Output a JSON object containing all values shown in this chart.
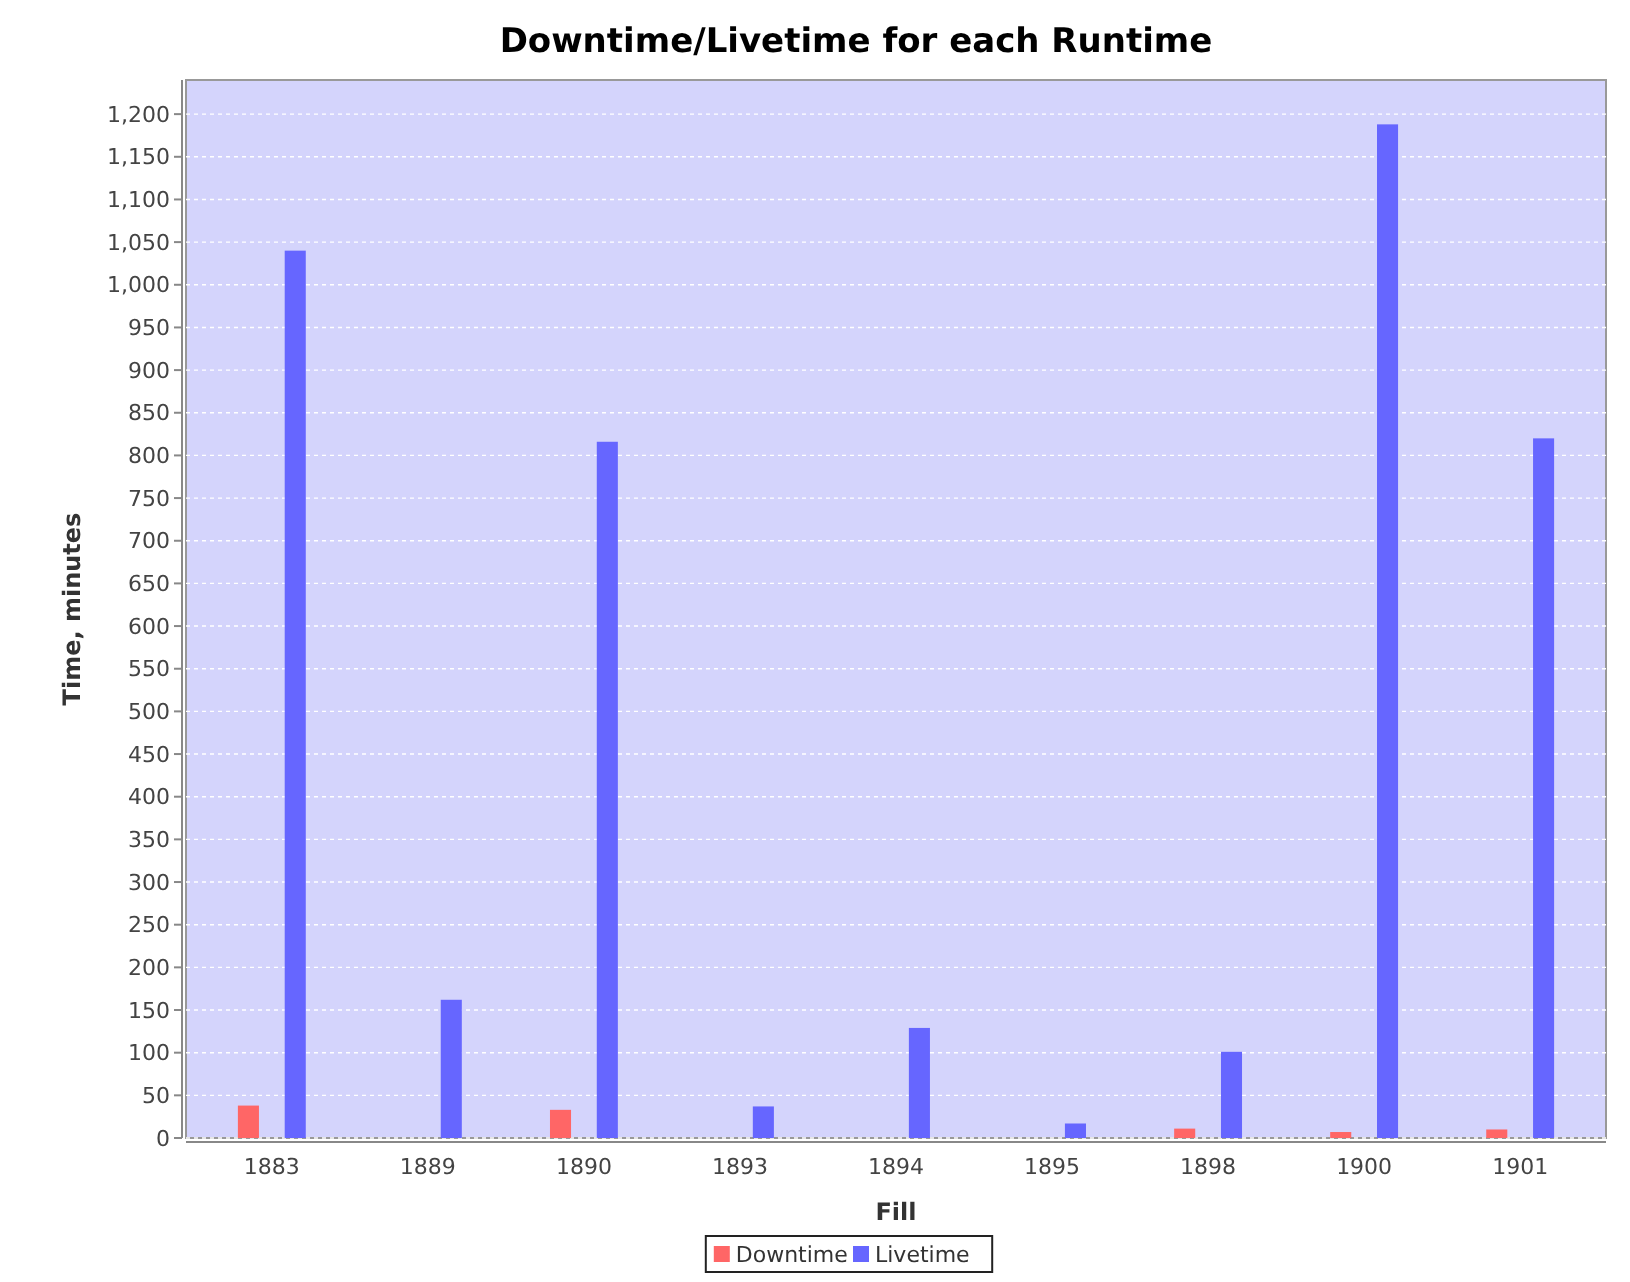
{
  "chart_data": {
    "type": "bar",
    "title": "Downtime/Livetime for each Runtime",
    "xlabel": "Fill",
    "ylabel": "Time, minutes",
    "categories": [
      "1883",
      "1889",
      "1890",
      "1893",
      "1894",
      "1895",
      "1898",
      "1900",
      "1901"
    ],
    "series": [
      {
        "name": "Downtime",
        "color": "#ff6666",
        "values": [
          38,
          null,
          33,
          null,
          null,
          null,
          11,
          7,
          10
        ]
      },
      {
        "name": "Livetime",
        "color": "#6666ff",
        "values": [
          1040,
          162,
          816,
          37,
          129,
          17,
          101,
          1188,
          820
        ]
      }
    ],
    "ylim": [
      0,
      1240
    ],
    "yticks": [
      0,
      50,
      100,
      150,
      200,
      250,
      300,
      350,
      400,
      450,
      500,
      550,
      600,
      650,
      700,
      750,
      800,
      850,
      900,
      950,
      {
        "value": 1000,
        "label": "1,000"
      },
      {
        "value": 1050,
        "label": "1,050"
      },
      {
        "value": 1100,
        "label": "1,100"
      },
      {
        "value": 1150,
        "label": "1,150"
      },
      {
        "value": 1200,
        "label": "1,200"
      }
    ],
    "grid": "y",
    "legend": "bottom"
  }
}
